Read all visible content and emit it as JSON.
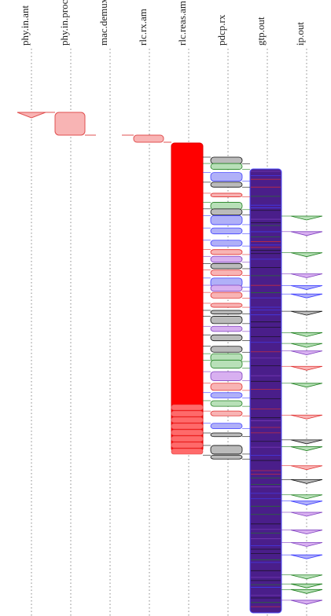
{
  "lanes": [
    "phy.in.ant",
    "phy.in.proc",
    "mac.demux",
    "rlc.rx.am",
    "rlc.reas.am",
    "pdcp.rx",
    "gtp.out",
    "ip.out"
  ]
}
